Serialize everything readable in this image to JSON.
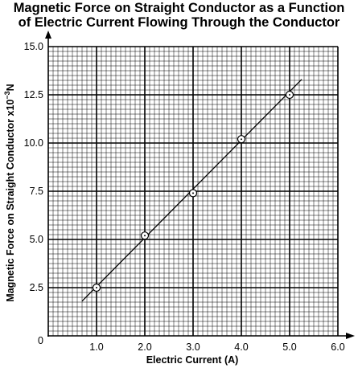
{
  "chart_data": {
    "type": "scatter",
    "title_lines": [
      "Magnetic Force on Straight Conductor as a Function",
      "of Electric Current Flowing Through the Conductor"
    ],
    "xlabel": "Electric Current (A)",
    "ylabel_main": "Magnetic Force on Straight Conductor x10",
    "ylabel_exp": "−3",
    "ylabel_unit": "N",
    "xlim": [
      0,
      6.0
    ],
    "ylim": [
      0,
      15.0
    ],
    "x_ticks": [
      "1.0",
      "2.0",
      "3.0",
      "4.0",
      "5.0",
      "6.0"
    ],
    "x_tick_values": [
      1,
      2,
      3,
      4,
      5,
      6
    ],
    "y_ticks": [
      "2.5",
      "5.0",
      "7.5",
      "10.0",
      "12.5",
      "15.0"
    ],
    "y_tick_values": [
      2.5,
      5,
      7.5,
      10,
      12.5,
      15
    ],
    "origin_label": "0",
    "grid": true,
    "points": [
      {
        "x": 1.0,
        "y": 2.5
      },
      {
        "x": 2.0,
        "y": 5.2
      },
      {
        "x": 3.0,
        "y": 7.4
      },
      {
        "x": 4.0,
        "y": 10.2
      },
      {
        "x": 5.0,
        "y": 12.5
      }
    ],
    "fit_line": {
      "x": [
        0.7,
        5.25
      ],
      "y": [
        1.8,
        13.3
      ]
    }
  }
}
